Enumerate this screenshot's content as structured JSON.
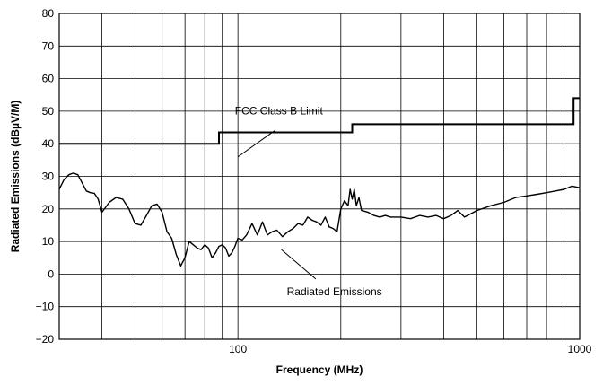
{
  "chart_data": {
    "type": "line",
    "title": "",
    "xlabel": "Frequency (MHz)",
    "ylabel": "Radiated Emissions (dBµV/M)",
    "x_scale": "log",
    "xlim": [
      30,
      1000
    ],
    "ylim": [
      -20,
      80
    ],
    "x_ticks": [
      30,
      40,
      50,
      60,
      70,
      80,
      90,
      100,
      200,
      300,
      400,
      500,
      600,
      700,
      800,
      900,
      1000
    ],
    "x_tick_labels": [
      {
        "value": 100,
        "label": "100"
      },
      {
        "value": 1000,
        "label": "1000"
      }
    ],
    "y_ticks": [
      -20,
      -10,
      0,
      10,
      20,
      30,
      40,
      50,
      60,
      70,
      80
    ],
    "y_tick_labels": [
      "−20",
      "−10",
      "0",
      "10",
      "20",
      "30",
      "40",
      "50",
      "60",
      "70",
      "80"
    ],
    "grid": true,
    "legend": "none",
    "colors": {
      "series": "#000000",
      "grid": "#000000",
      "background": "#ffffff"
    },
    "series": [
      {
        "name": "FCC Class B Limit",
        "style": "step",
        "x": [
          30,
          88,
          88,
          216,
          216,
          960,
          960,
          1000
        ],
        "y": [
          40,
          40,
          43.5,
          43.5,
          46,
          46,
          54,
          54
        ]
      },
      {
        "name": "Radiated Emissions",
        "style": "line",
        "x": [
          30,
          31,
          32,
          33,
          34,
          35,
          36,
          37,
          38,
          39,
          40,
          41,
          42,
          44,
          46,
          48,
          50,
          52,
          54,
          56,
          58,
          60,
          62,
          64,
          66,
          68,
          70,
          72,
          74,
          76,
          78,
          80,
          82,
          84,
          86,
          88,
          90,
          92,
          94,
          96,
          98,
          100,
          103,
          106,
          110,
          114,
          118,
          122,
          126,
          130,
          135,
          140,
          145,
          150,
          155,
          160,
          165,
          170,
          175,
          180,
          185,
          190,
          195,
          200,
          205,
          210,
          213,
          216,
          219,
          222,
          226,
          230,
          240,
          250,
          260,
          270,
          280,
          300,
          320,
          340,
          360,
          380,
          400,
          420,
          440,
          460,
          480,
          500,
          550,
          600,
          650,
          700,
          750,
          800,
          850,
          900,
          950,
          1000
        ],
        "y": [
          26,
          29,
          30.5,
          31,
          30.5,
          28,
          25.5,
          25,
          24.8,
          23,
          19,
          20.5,
          22,
          23.5,
          23,
          20,
          15.5,
          15,
          18,
          21,
          21.5,
          19,
          13,
          11,
          6,
          2.5,
          5,
          10,
          9,
          8,
          7.5,
          9,
          8,
          5,
          6.5,
          8.5,
          9,
          8,
          5.5,
          6.5,
          8.5,
          11,
          10.5,
          12,
          15.5,
          12,
          16,
          12,
          13,
          13.5,
          11.5,
          13,
          14,
          15.5,
          15,
          17.5,
          16.5,
          16,
          15,
          17.5,
          14.5,
          14,
          13,
          20,
          22.5,
          21,
          26,
          23,
          26,
          21,
          23.5,
          19.5,
          19,
          18,
          17.5,
          18,
          17.5,
          17.5,
          17,
          18,
          17.5,
          18,
          17,
          18,
          19.5,
          17.5,
          18.5,
          19.5,
          21,
          22,
          23.5,
          24,
          24.5,
          25,
          25.5,
          26,
          27,
          26.5
        ]
      }
    ],
    "annotations": [
      {
        "text": "FCC Class B Limit",
        "points_to_series": "FCC Class B Limit"
      },
      {
        "text": "Radiated Emissions",
        "points_to_series": "Radiated Emissions"
      }
    ]
  }
}
